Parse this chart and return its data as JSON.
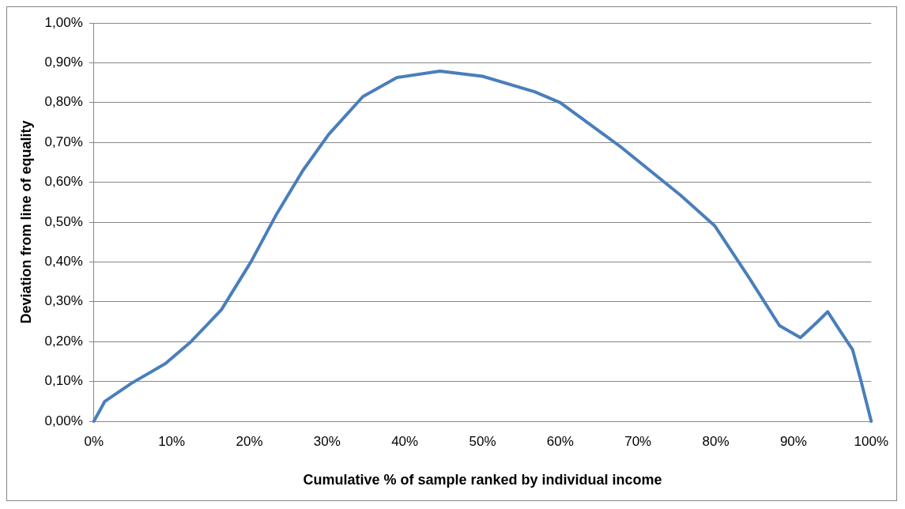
{
  "chart_data": {
    "type": "line",
    "xlabel": "Cumulative % of sample ranked by individual income",
    "ylabel": "Deviation from line of equality",
    "x": [
      0,
      1.4,
      4.8,
      9.2,
      12.5,
      16.4,
      20.2,
      23.5,
      26.9,
      30.2,
      34.6,
      39,
      44.5,
      50,
      56.7,
      60,
      67.7,
      75.5,
      79.9,
      84.3,
      88.2,
      90.9,
      93.1,
      94.4,
      95.9,
      97.6,
      98.7,
      100
    ],
    "series": [
      {
        "color": "#4a7ebb",
        "values": [
          0,
          0.05,
          0.095,
          0.145,
          0.2,
          0.28,
          0.4,
          0.52,
          0.63,
          0.72,
          0.815,
          0.863,
          0.879,
          0.866,
          0.827,
          0.8,
          0.69,
          0.567,
          0.49,
          0.36,
          0.24,
          0.21,
          0.25,
          0.275,
          0.23,
          0.18,
          0.1,
          0
        ]
      }
    ],
    "xlim": [
      0,
      100
    ],
    "xticks": [
      {
        "value": 0,
        "label": "0%"
      },
      {
        "value": 10,
        "label": "10%"
      },
      {
        "value": 20,
        "label": "20%"
      },
      {
        "value": 30,
        "label": "30%"
      },
      {
        "value": 40,
        "label": "40%"
      },
      {
        "value": 50,
        "label": "50%"
      },
      {
        "value": 60,
        "label": "60%"
      },
      {
        "value": 70,
        "label": "70%"
      },
      {
        "value": 80,
        "label": "80%"
      },
      {
        "value": 90,
        "label": "90%"
      },
      {
        "value": 100,
        "label": "100%"
      }
    ],
    "ylim": [
      0,
      1
    ],
    "yticks": [
      {
        "value": 0,
        "label": "0,00%"
      },
      {
        "value": 0.1,
        "label": "0,10%"
      },
      {
        "value": 0.2,
        "label": "0,20%"
      },
      {
        "value": 0.3,
        "label": "0,30%"
      },
      {
        "value": 0.4,
        "label": "0,40%"
      },
      {
        "value": 0.5,
        "label": "0,50%"
      },
      {
        "value": 0.6,
        "label": "0,60%"
      },
      {
        "value": 0.7,
        "label": "0,70%"
      },
      {
        "value": 0.8,
        "label": "0,80%"
      },
      {
        "value": 0.9,
        "label": "0,90%"
      },
      {
        "value": 1,
        "label": "1,00%"
      }
    ],
    "grid": "y",
    "marker": "none",
    "line_style": "solid",
    "legend": false
  }
}
